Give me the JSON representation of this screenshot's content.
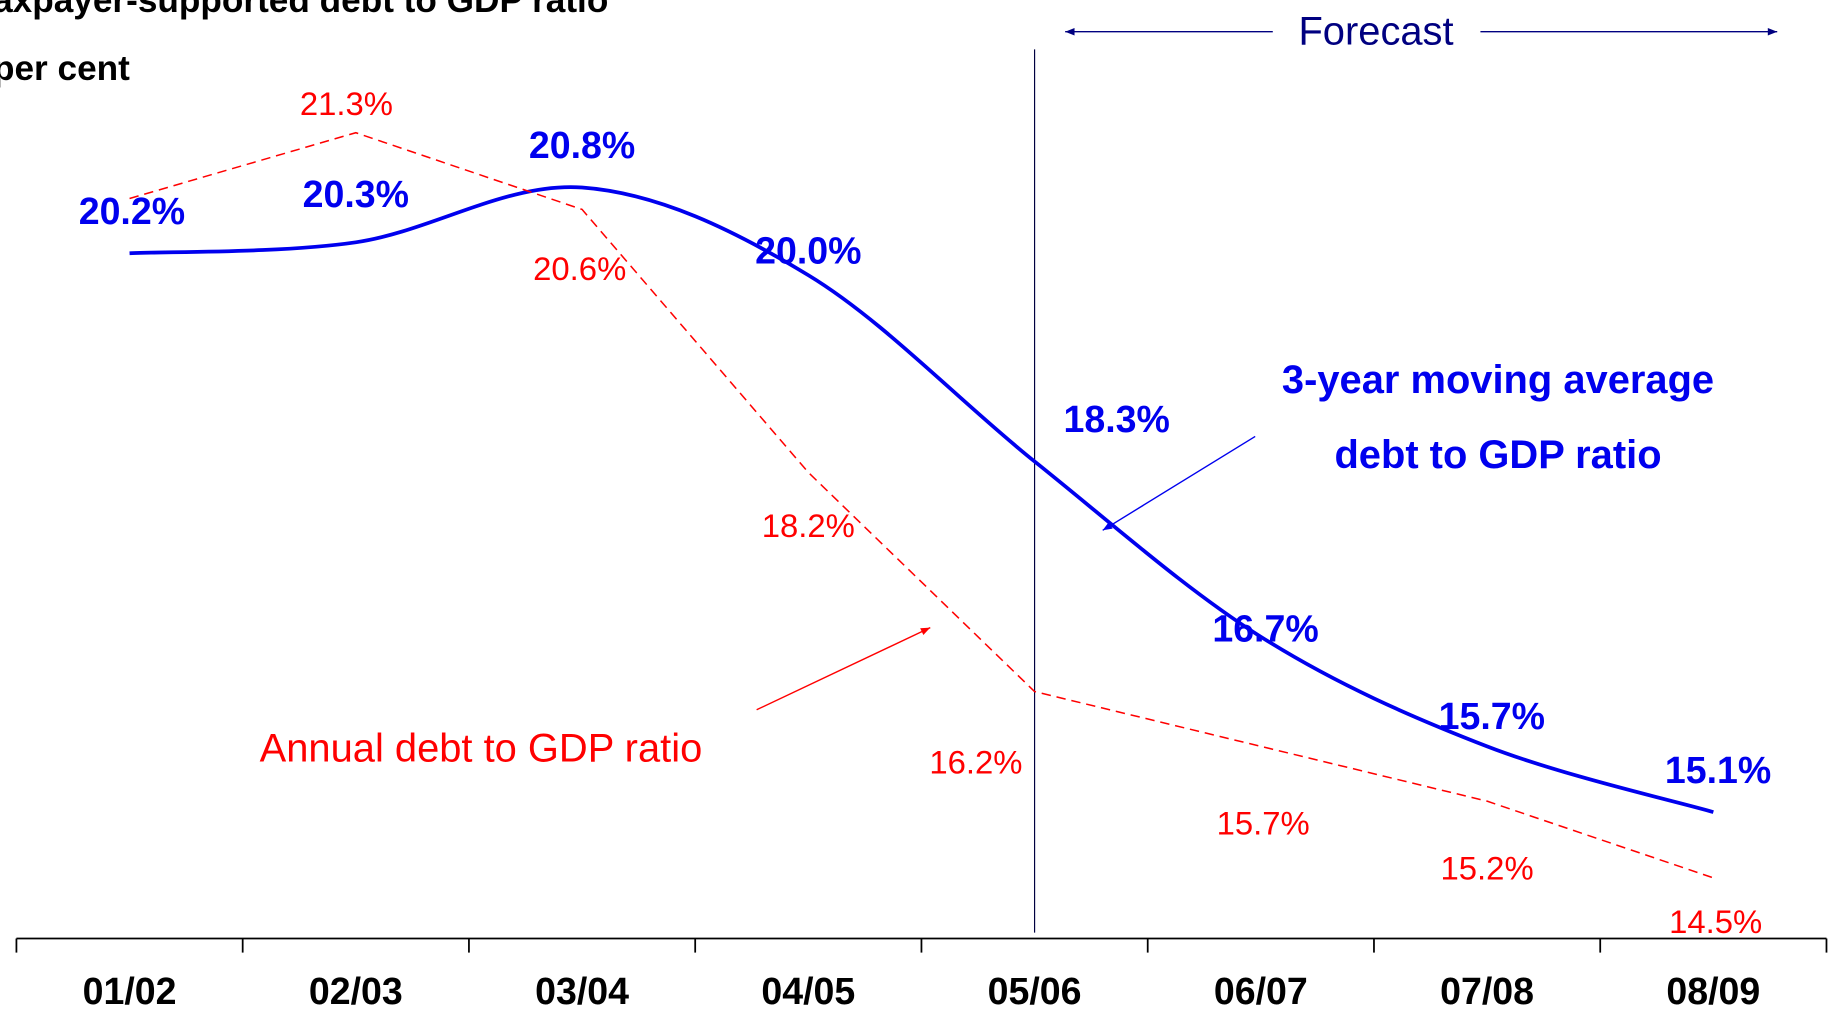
{
  "chart_data": {
    "type": "line",
    "title": "Taxpayer-supported debt  to GDP ratio",
    "subtitle": "per cent",
    "categories": [
      "01/02",
      "02/03",
      "03/04",
      "04/05",
      "05/06",
      "06/07",
      "07/08",
      "08/09"
    ],
    "ylim": [
      14,
      22.5
    ],
    "series": [
      {
        "name": "3-year moving average debt to GDP ratio",
        "name_lines": [
          "3-year moving average",
          "debt to GDP ratio"
        ],
        "color": "#0000ee",
        "style": "solid",
        "values": [
          20.2,
          20.3,
          20.8,
          20.0,
          18.3,
          16.7,
          15.7,
          15.1
        ],
        "value_labels": [
          "20.2%",
          "20.3%",
          "20.8%",
          "20.0%",
          "18.3%",
          "16.7%",
          "15.7%",
          "15.1%"
        ]
      },
      {
        "name": "Annual debt to GDP ratio",
        "color": "#ff0000",
        "style": "dashed",
        "values": [
          20.7,
          21.3,
          20.6,
          18.2,
          16.2,
          15.7,
          15.2,
          14.5
        ],
        "value_labels": [
          null,
          "21.3%",
          "20.6%",
          "18.2%",
          "16.2%",
          "15.7%",
          "15.2%",
          "14.5%"
        ]
      }
    ],
    "annotations": {
      "forecast": "Forecast",
      "forecast_start": "05/06"
    }
  }
}
